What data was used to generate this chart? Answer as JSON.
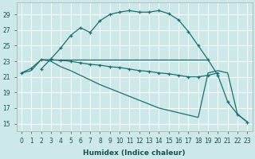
{
  "bg_color": "#cce8e8",
  "line_color": "#1a7070",
  "xlabel": "Humidex (Indice chaleur)",
  "xlim": [
    -0.5,
    23.5
  ],
  "ylim": [
    14,
    30.5
  ],
  "yticks": [
    15,
    17,
    19,
    21,
    23,
    25,
    27,
    29
  ],
  "xticks": [
    0,
    1,
    2,
    3,
    4,
    5,
    6,
    7,
    8,
    9,
    10,
    11,
    12,
    13,
    14,
    15,
    16,
    17,
    18,
    19,
    20,
    21,
    22,
    23
  ],
  "line1_x": [
    2,
    3,
    4,
    5,
    6,
    7,
    8,
    9,
    10,
    11,
    12,
    13,
    14,
    15,
    16,
    17,
    18,
    19,
    20,
    21,
    22,
    23
  ],
  "line1_y": [
    22.0,
    23.3,
    24.7,
    26.3,
    27.3,
    26.7,
    28.2,
    29.0,
    29.3,
    29.5,
    29.3,
    29.3,
    29.5,
    29.1,
    28.3,
    26.8,
    25.0,
    23.2,
    21.2,
    17.8,
    16.2,
    15.2
  ],
  "line2_x": [
    3,
    4,
    5,
    6,
    7,
    8,
    9,
    10,
    11,
    12,
    13,
    14,
    15,
    16,
    17,
    18,
    19
  ],
  "line2_y": [
    23.2,
    23.2,
    23.2,
    23.2,
    23.2,
    23.2,
    23.2,
    23.2,
    23.2,
    23.2,
    23.2,
    23.2,
    23.2,
    23.2,
    23.2,
    23.2,
    23.2
  ],
  "line3_x": [
    0,
    1,
    2,
    3,
    4,
    5,
    6,
    7,
    8,
    9,
    10,
    11,
    12,
    13,
    14,
    15,
    16,
    17,
    18,
    19,
    20
  ],
  "line3_y": [
    21.5,
    22.1,
    23.2,
    23.2,
    23.1,
    23.0,
    22.8,
    22.6,
    22.5,
    22.3,
    22.2,
    22.0,
    21.8,
    21.7,
    21.5,
    21.4,
    21.2,
    21.0,
    21.0,
    21.2,
    21.5
  ],
  "line4_x": [
    0,
    1,
    2,
    3,
    4,
    5,
    6,
    7,
    8,
    9,
    10,
    11,
    12,
    13,
    14,
    15,
    16,
    17,
    18,
    19,
    20,
    21,
    22,
    23
  ],
  "line4_y": [
    21.5,
    21.8,
    23.2,
    23.0,
    22.3,
    21.8,
    21.2,
    20.6,
    20.0,
    19.5,
    19.0,
    18.5,
    18.0,
    17.5,
    17.0,
    16.7,
    16.4,
    16.1,
    15.8,
    21.5,
    21.8,
    21.5,
    16.2,
    15.2
  ]
}
